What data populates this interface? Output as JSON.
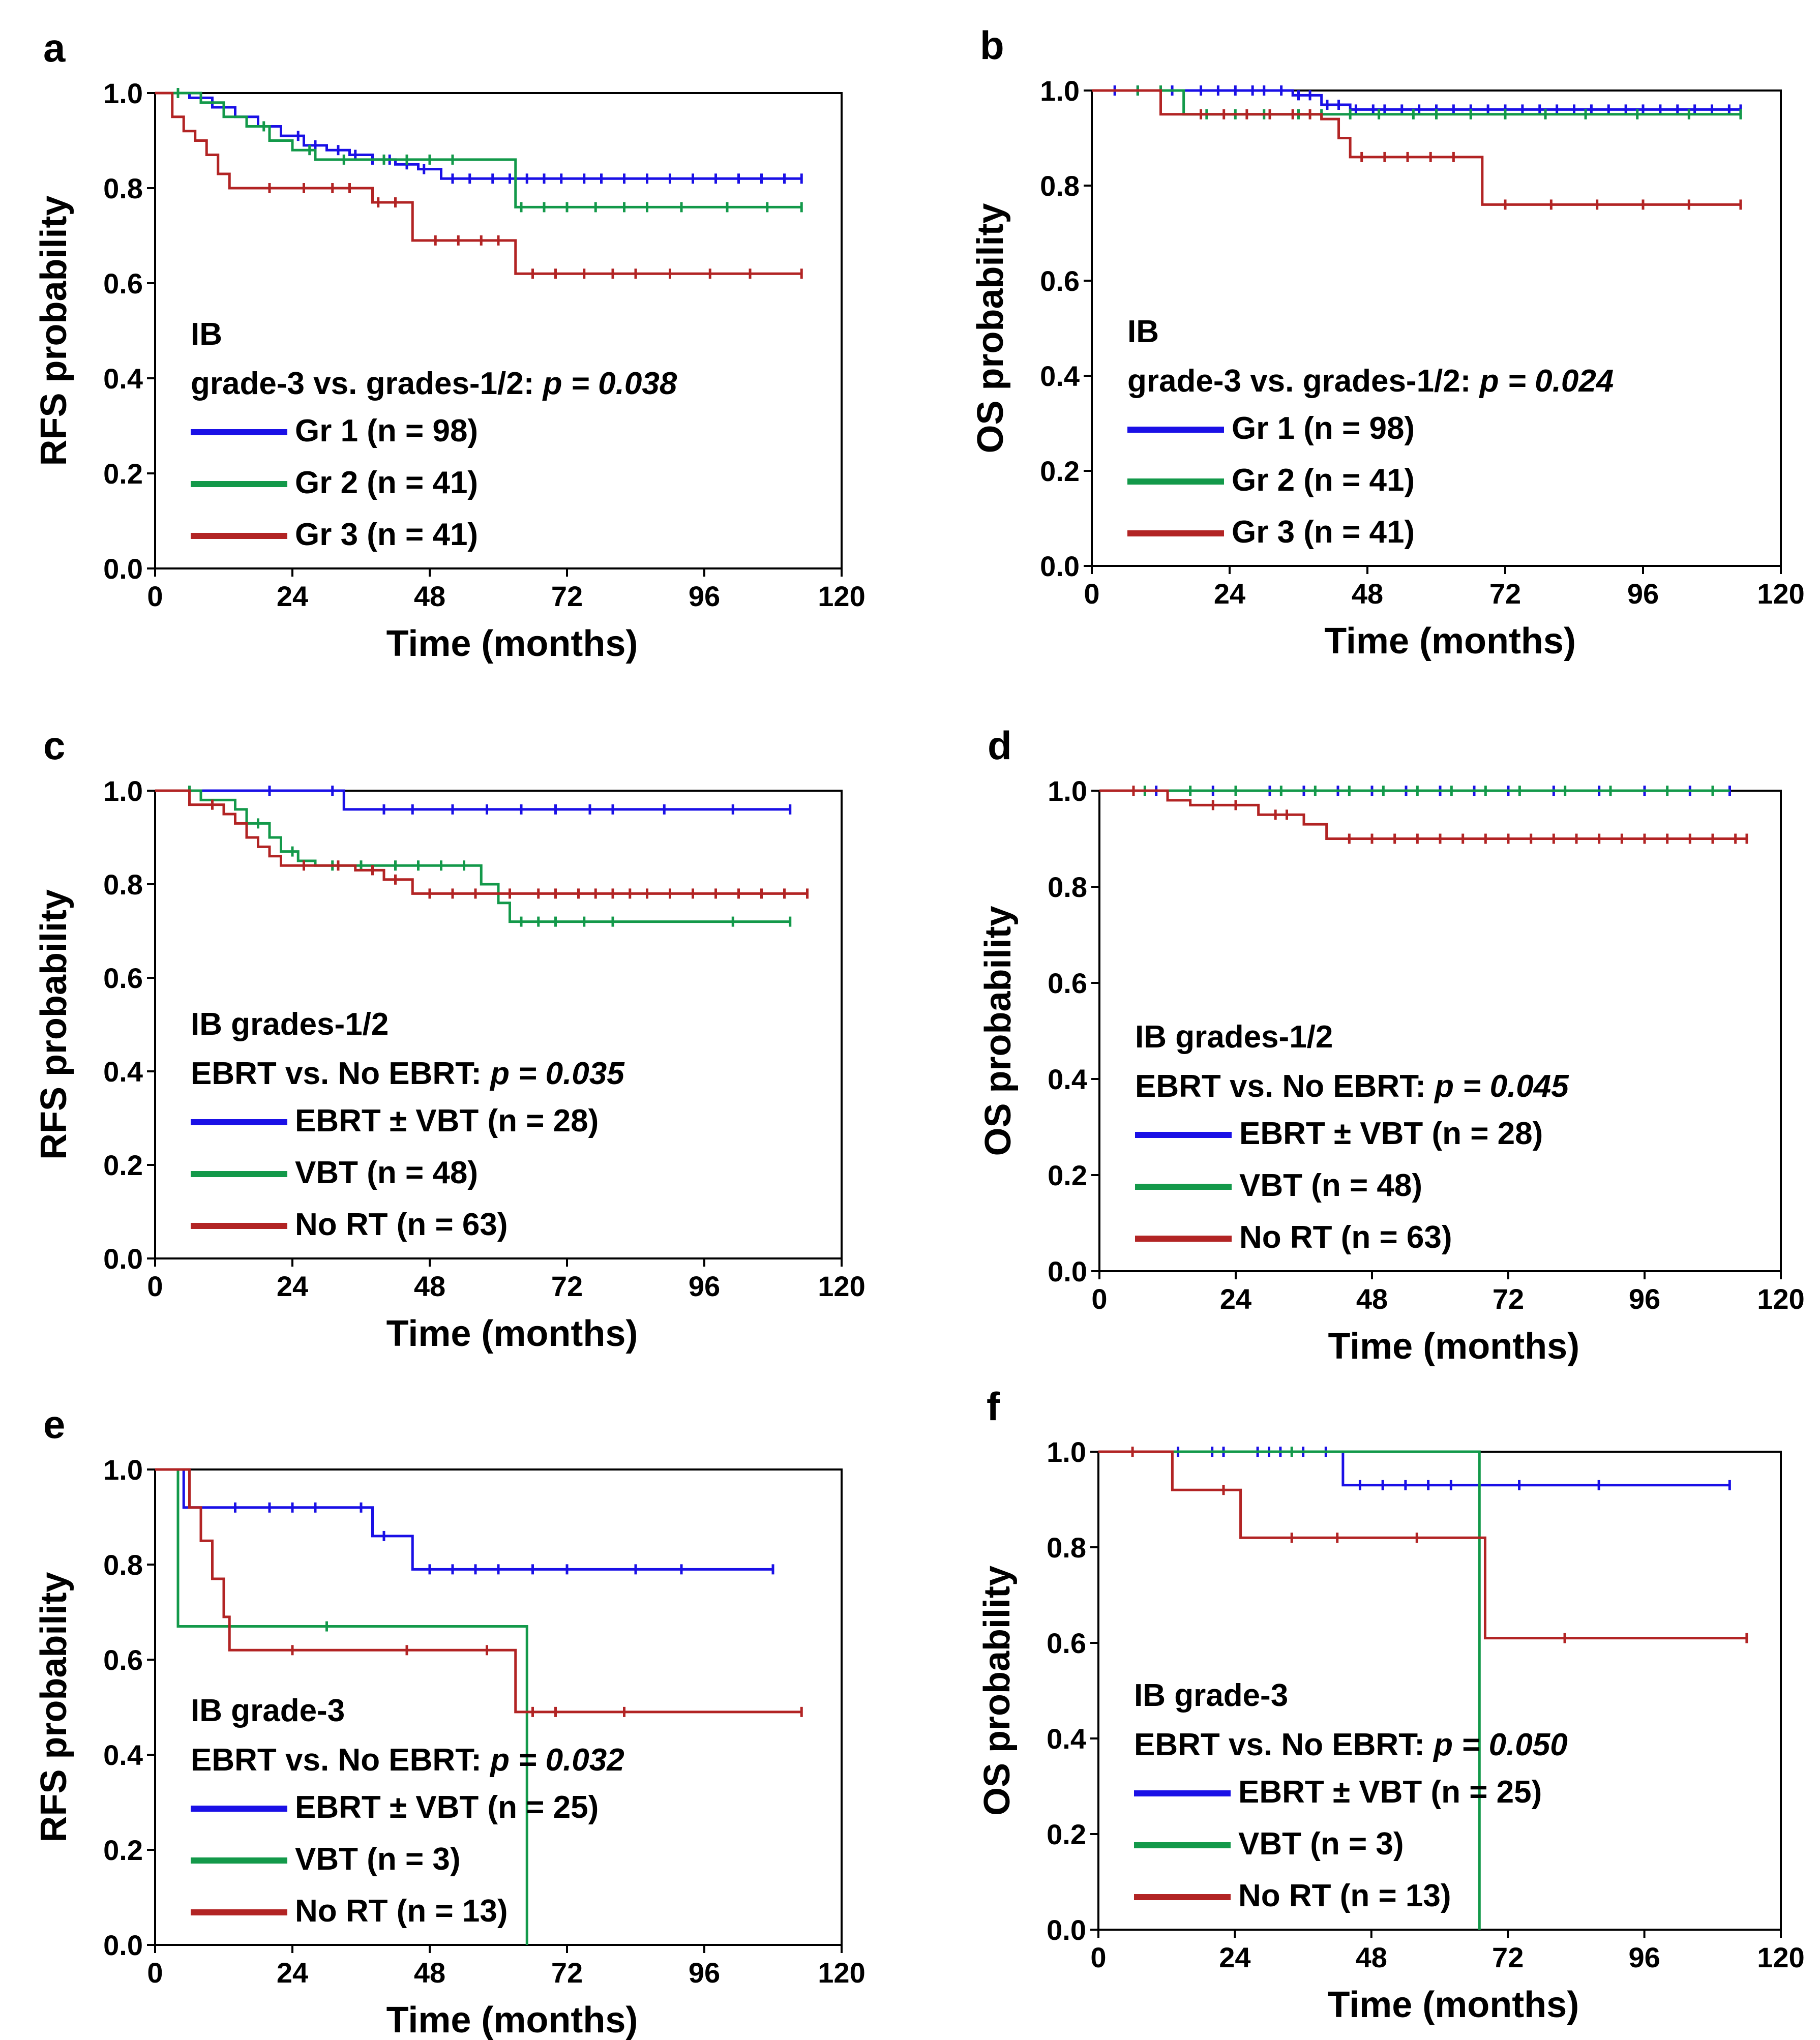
{
  "colors": {
    "blue": "#1a10e6",
    "green": "#13994a",
    "red": "#b22424",
    "axis": "#000000"
  },
  "chart_data": [
    {
      "type": "line",
      "panel": "a",
      "title": "",
      "xlabel": "Time (months)",
      "ylabel": "RFS probability",
      "xlim": [
        0,
        120
      ],
      "ylim": [
        0,
        1
      ],
      "xticks": [
        "0",
        "24",
        "48",
        "72",
        "96",
        "120"
      ],
      "yticks": [
        "0.0",
        "0.2",
        "0.4",
        "0.6",
        "0.8",
        "1.0"
      ],
      "annotation_line1": "IB",
      "annotation_line2_prefix": "grade-3 vs. grades-1/2: ",
      "annotation_p": "p = 0.038",
      "legend_position": "lower-left",
      "series": [
        {
          "name": "Gr 1 (n = 98)",
          "color": "#1a10e6",
          "x": [
            0,
            6,
            10,
            14,
            18,
            22,
            26,
            30,
            34,
            38,
            42,
            46,
            50,
            113
          ],
          "y": [
            1.0,
            0.99,
            0.97,
            0.95,
            0.93,
            0.91,
            0.89,
            0.88,
            0.87,
            0.86,
            0.85,
            0.84,
            0.82,
            0.82
          ],
          "censor_x": [
            25,
            28,
            32,
            35,
            38,
            41,
            44,
            47,
            52,
            55,
            59,
            62,
            65,
            68,
            71,
            75,
            78,
            82,
            86,
            90,
            94,
            98,
            102,
            106,
            110,
            113
          ]
        },
        {
          "name": "Gr 2 (n = 41)",
          "color": "#13994a",
          "x": [
            0,
            8,
            12,
            16,
            20,
            24,
            28,
            56,
            63,
            113
          ],
          "y": [
            1.0,
            0.98,
            0.95,
            0.93,
            0.9,
            0.88,
            0.86,
            0.86,
            0.76,
            0.76
          ],
          "censor_x": [
            4,
            19,
            27,
            33,
            40,
            44,
            48,
            52,
            64,
            68,
            72,
            77,
            82,
            86,
            92,
            100,
            107,
            113
          ]
        },
        {
          "name": "Gr 3 (n = 41)",
          "color": "#b22424",
          "x": [
            0,
            3,
            5,
            7,
            9,
            11,
            13,
            38,
            45,
            63,
            113
          ],
          "y": [
            1.0,
            0.95,
            0.92,
            0.9,
            0.87,
            0.83,
            0.8,
            0.77,
            0.69,
            0.62,
            0.62
          ],
          "censor_x": [
            20,
            26,
            31,
            34,
            39,
            42,
            49,
            53,
            57,
            60,
            66,
            70,
            75,
            80,
            84,
            90,
            97,
            104,
            113
          ]
        }
      ]
    },
    {
      "type": "line",
      "panel": "b",
      "title": "",
      "xlabel": "Time (months)",
      "ylabel": "OS probability",
      "xlim": [
        0,
        120
      ],
      "ylim": [
        0,
        1
      ],
      "xticks": [
        "0",
        "24",
        "48",
        "72",
        "96",
        "120"
      ],
      "yticks": [
        "0.0",
        "0.2",
        "0.4",
        "0.6",
        "0.8",
        "1.0"
      ],
      "annotation_line1": "IB",
      "annotation_line2_prefix": "grade-3 vs. grades-1/2: ",
      "annotation_p": "p = 0.024",
      "legend_position": "lower-left",
      "series": [
        {
          "name": "Gr 1 (n = 98)",
          "color": "#1a10e6",
          "x": [
            0,
            35,
            40,
            45,
            113
          ],
          "y": [
            1.0,
            0.99,
            0.97,
            0.96,
            0.96
          ],
          "censor_x": [
            4,
            8,
            14,
            19,
            22,
            25,
            28,
            30,
            33,
            36,
            38,
            41,
            43,
            46,
            49,
            51,
            54,
            57,
            60,
            63,
            66,
            69,
            72,
            75,
            78,
            81,
            84,
            87,
            90,
            93,
            96,
            99,
            102,
            105,
            108,
            111,
            113
          ]
        },
        {
          "name": "Gr 2 (n = 41)",
          "color": "#13994a",
          "x": [
            0,
            16,
            113
          ],
          "y": [
            1.0,
            0.95,
            0.95
          ],
          "censor_x": [
            8,
            12,
            20,
            25,
            30,
            36,
            40,
            45,
            50,
            56,
            60,
            66,
            72,
            79,
            86,
            95,
            104,
            113
          ]
        },
        {
          "name": "Gr 3 (n = 41)",
          "color": "#b22424",
          "x": [
            0,
            12,
            40,
            43,
            45,
            68,
            113
          ],
          "y": [
            1.0,
            0.95,
            0.94,
            0.9,
            0.86,
            0.76,
            0.76
          ],
          "censor_x": [
            19,
            23,
            27,
            31,
            35,
            38,
            47,
            51,
            55,
            59,
            63,
            72,
            80,
            88,
            96,
            104,
            113
          ]
        }
      ]
    },
    {
      "type": "line",
      "panel": "c",
      "title": "",
      "xlabel": "Time (months)",
      "ylabel": "RFS probability",
      "xlim": [
        0,
        120
      ],
      "ylim": [
        0,
        1
      ],
      "xticks": [
        "0",
        "24",
        "48",
        "72",
        "96",
        "120"
      ],
      "yticks": [
        "0.0",
        "0.2",
        "0.4",
        "0.6",
        "0.8",
        "1.0"
      ],
      "annotation_line1": "IB grades-1/2",
      "annotation_line2_prefix": "EBRT vs. No EBRT: ",
      "annotation_p": "p = 0.035",
      "legend_position": "lower-left",
      "series": [
        {
          "name": "EBRT ± VBT (n = 28)",
          "color": "#1a10e6",
          "x": [
            0,
            33,
            111
          ],
          "y": [
            1.0,
            0.96,
            0.96
          ],
          "censor_x": [
            20,
            31,
            40,
            45,
            52,
            58,
            64,
            70,
            76,
            80,
            89,
            101,
            111
          ]
        },
        {
          "name": "VBT (n = 48)",
          "color": "#13994a",
          "x": [
            0,
            8,
            14,
            16,
            20,
            22,
            25,
            28,
            40,
            57,
            60,
            62,
            111
          ],
          "y": [
            1.0,
            0.98,
            0.96,
            0.93,
            0.9,
            0.87,
            0.85,
            0.84,
            0.84,
            0.8,
            0.76,
            0.72,
            0.72
          ],
          "censor_x": [
            6,
            18,
            24,
            31,
            36,
            42,
            46,
            50,
            54,
            64,
            67,
            70,
            75,
            80,
            101,
            111
          ]
        },
        {
          "name": "No RT (n = 63)",
          "color": "#b22424",
          "x": [
            0,
            6,
            12,
            14,
            16,
            18,
            20,
            22,
            35,
            40,
            45,
            114
          ],
          "y": [
            1.0,
            0.97,
            0.95,
            0.93,
            0.9,
            0.88,
            0.86,
            0.84,
            0.83,
            0.81,
            0.78,
            0.78
          ],
          "censor_x": [
            10,
            26,
            32,
            38,
            42,
            48,
            52,
            56,
            62,
            67,
            70,
            74,
            77,
            80,
            83,
            86,
            90,
            94,
            98,
            102,
            106,
            110,
            114
          ]
        }
      ]
    },
    {
      "type": "line",
      "panel": "d",
      "title": "",
      "xlabel": "Time (months)",
      "ylabel": "OS probability",
      "xlim": [
        0,
        120
      ],
      "ylim": [
        0,
        1
      ],
      "xticks": [
        "0",
        "24",
        "48",
        "72",
        "96",
        "120"
      ],
      "yticks": [
        "0.0",
        "0.2",
        "0.4",
        "0.6",
        "0.8",
        "1.0"
      ],
      "annotation_line1": "IB grades-1/2",
      "annotation_line2_prefix": "EBRT vs. No EBRT: ",
      "annotation_p": "p = 0.045",
      "legend_position": "lower-left",
      "series": [
        {
          "name": "EBRT ± VBT (n = 28)",
          "color": "#1a10e6",
          "x": [
            0,
            111
          ],
          "y": [
            1.0,
            1.0
          ],
          "censor_x": [
            10,
            20,
            30,
            36,
            42,
            48,
            54,
            60,
            66,
            72,
            80,
            88,
            96,
            104,
            111
          ]
        },
        {
          "name": "VBT (n = 48)",
          "color": "#13994a",
          "x": [
            0,
            111
          ],
          "y": [
            1.0,
            1.0
          ],
          "censor_x": [
            8,
            16,
            24,
            32,
            38,
            44,
            50,
            56,
            62,
            68,
            74,
            82,
            90,
            100,
            108
          ]
        },
        {
          "name": "No RT (n = 63)",
          "color": "#b22424",
          "x": [
            0,
            12,
            16,
            28,
            36,
            40,
            114
          ],
          "y": [
            1.0,
            0.98,
            0.97,
            0.95,
            0.93,
            0.9,
            0.9
          ],
          "censor_x": [
            6,
            20,
            24,
            31,
            33,
            44,
            48,
            52,
            56,
            60,
            64,
            68,
            72,
            76,
            80,
            84,
            88,
            92,
            96,
            100,
            104,
            108,
            112,
            114
          ]
        }
      ]
    },
    {
      "type": "line",
      "panel": "e",
      "title": "",
      "xlabel": "Time (months)",
      "ylabel": "RFS probability",
      "xlim": [
        0,
        120
      ],
      "ylim": [
        0,
        1
      ],
      "xticks": [
        "0",
        "24",
        "48",
        "72",
        "96",
        "120"
      ],
      "yticks": [
        "0.0",
        "0.2",
        "0.4",
        "0.6",
        "0.8",
        "1.0"
      ],
      "annotation_line1": "IB grade-3",
      "annotation_line2_prefix": "EBRT vs. No EBRT: ",
      "annotation_p": "p = 0.032",
      "legend_position": "lower-left",
      "series": [
        {
          "name": "EBRT ± VBT (n = 25)",
          "color": "#1a10e6",
          "x": [
            0,
            5,
            38,
            45,
            108
          ],
          "y": [
            1.0,
            0.92,
            0.86,
            0.79,
            0.79
          ],
          "censor_x": [
            14,
            20,
            24,
            28,
            36,
            40,
            48,
            52,
            56,
            60,
            66,
            72,
            84,
            92,
            108
          ]
        },
        {
          "name": "VBT (n = 3)",
          "color": "#13994a",
          "x": [
            0,
            4,
            64,
            65
          ],
          "y": [
            1.0,
            0.67,
            0.67,
            0.0
          ],
          "censor_x": [
            30
          ]
        },
        {
          "name": "No RT (n = 13)",
          "color": "#b22424",
          "x": [
            0,
            6,
            8,
            10,
            12,
            13,
            63,
            113
          ],
          "y": [
            1.0,
            0.92,
            0.85,
            0.77,
            0.69,
            0.62,
            0.49,
            0.49
          ],
          "censor_x": [
            24,
            44,
            58,
            66,
            70,
            82,
            113
          ]
        }
      ]
    },
    {
      "type": "line",
      "panel": "f",
      "title": "",
      "xlabel": "Time (months)",
      "ylabel": "OS probability",
      "xlim": [
        0,
        120
      ],
      "ylim": [
        0,
        1
      ],
      "xticks": [
        "0",
        "24",
        "48",
        "72",
        "96",
        "120"
      ],
      "yticks": [
        "0.0",
        "0.2",
        "0.4",
        "0.6",
        "0.8",
        "1.0"
      ],
      "annotation_line1": "IB grade-3",
      "annotation_line2_prefix": "EBRT vs. No EBRT: ",
      "annotation_p": "p = 0.050",
      "legend_position": "lower-left",
      "series": [
        {
          "name": "EBRT ± VBT (n = 25)",
          "color": "#1a10e6",
          "x": [
            0,
            43,
            111
          ],
          "y": [
            1.0,
            0.93,
            0.93
          ],
          "censor_x": [
            14,
            20,
            22,
            28,
            30,
            32,
            36,
            40,
            46,
            50,
            54,
            58,
            62,
            74,
            88,
            111
          ]
        },
        {
          "name": "VBT (n = 3)",
          "color": "#13994a",
          "x": [
            0,
            66,
            67
          ],
          "y": [
            1.0,
            1.0,
            0.0
          ],
          "censor_x": [
            34
          ]
        },
        {
          "name": "No RT (n = 13)",
          "color": "#b22424",
          "x": [
            0,
            13,
            25,
            68,
            114
          ],
          "y": [
            1.0,
            0.92,
            0.82,
            0.61,
            0.61
          ],
          "censor_x": [
            6,
            22,
            34,
            42,
            56,
            82,
            114
          ]
        }
      ]
    }
  ]
}
